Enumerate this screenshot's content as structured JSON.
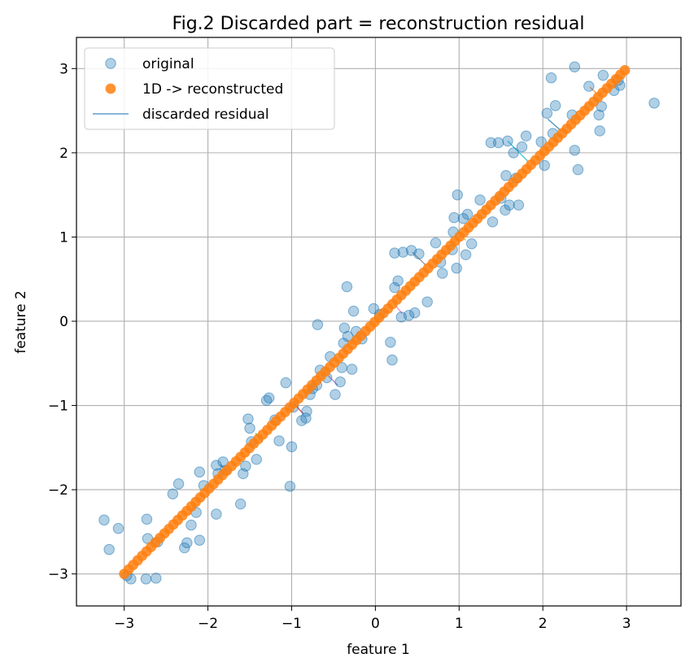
{
  "chart_data": {
    "type": "scatter",
    "title": "Fig.2 Discarded part = reconstruction residual",
    "xlabel": "feature 1",
    "ylabel": "feature 2",
    "xlim": [
      -3.57,
      3.65
    ],
    "ylim": [
      -3.38,
      3.37
    ],
    "xticks": [
      -3,
      -2,
      -1,
      0,
      1,
      2,
      3
    ],
    "yticks": [
      -3,
      -2,
      -1,
      0,
      1,
      2,
      3
    ],
    "xtick_labels": [
      "−3",
      "−2",
      "−1",
      "0",
      "1",
      "2",
      "3"
    ],
    "ytick_labels": [
      "−3",
      "−2",
      "−1",
      "0",
      "1",
      "2",
      "3"
    ],
    "grid": true,
    "legend_position": "top-left",
    "colors": {
      "original": "#1f77b4",
      "reconstructed": "#ff7f0e",
      "residual": "#1f77b4",
      "residual_palette": [
        "#1f77b4",
        "#ff7f0e",
        "#2ca02c",
        "#d62728",
        "#9467bd",
        "#8c564b",
        "#e377c2",
        "#7f7f7f",
        "#bcbd22",
        "#17becf"
      ]
    },
    "legend": [
      {
        "label": "original",
        "kind": "marker-light"
      },
      {
        "label": "1D -> reconstructed",
        "kind": "marker-dark"
      },
      {
        "label": "discarded residual",
        "kind": "line"
      }
    ],
    "series": [
      {
        "name": "original",
        "points": [
          [
            -3.24,
            -2.36
          ],
          [
            -3.18,
            -2.71
          ],
          [
            -3.07,
            -2.46
          ],
          [
            -2.97,
            -3.02
          ],
          [
            -2.92,
            -3.06
          ],
          [
            -2.74,
            -3.06
          ],
          [
            -2.72,
            -2.58
          ],
          [
            -2.62,
            -3.05
          ],
          [
            -2.73,
            -2.35
          ],
          [
            -2.6,
            -2.62
          ],
          [
            -2.42,
            -2.05
          ],
          [
            -2.35,
            -1.93
          ],
          [
            -2.28,
            -2.69
          ],
          [
            -2.25,
            -2.63
          ],
          [
            -2.2,
            -2.42
          ],
          [
            -2.14,
            -2.27
          ],
          [
            -2.1,
            -2.6
          ],
          [
            -2.1,
            -1.79
          ],
          [
            -2.05,
            -1.95
          ],
          [
            -1.9,
            -2.29
          ],
          [
            -1.9,
            -1.71
          ],
          [
            -1.88,
            -1.81
          ],
          [
            -1.82,
            -1.67
          ],
          [
            -1.79,
            -1.77
          ],
          [
            -1.61,
            -2.17
          ],
          [
            -1.58,
            -1.81
          ],
          [
            -1.55,
            -1.72
          ],
          [
            -1.52,
            -1.16
          ],
          [
            -1.5,
            -1.27
          ],
          [
            -1.48,
            -1.43
          ],
          [
            -1.42,
            -1.64
          ],
          [
            -1.3,
            -0.94
          ],
          [
            -1.27,
            -0.91
          ],
          [
            -1.2,
            -1.17
          ],
          [
            -1.15,
            -1.42
          ],
          [
            -1.07,
            -0.73
          ],
          [
            -1.02,
            -1.96
          ],
          [
            -1.0,
            -1.49
          ],
          [
            -0.98,
            -1.02
          ],
          [
            -0.88,
            -1.18
          ],
          [
            -0.83,
            -1.15
          ],
          [
            -0.82,
            -1.07
          ],
          [
            -0.78,
            -0.87
          ],
          [
            -0.75,
            -0.8
          ],
          [
            -0.7,
            -0.76
          ],
          [
            -0.69,
            -0.04
          ],
          [
            -0.66,
            -0.58
          ],
          [
            -0.58,
            -0.67
          ],
          [
            -0.54,
            -0.42
          ],
          [
            -0.48,
            -0.87
          ],
          [
            -0.42,
            -0.72
          ],
          [
            -0.4,
            -0.55
          ],
          [
            -0.38,
            -0.26
          ],
          [
            -0.37,
            -0.08
          ],
          [
            -0.34,
            0.41
          ],
          [
            -0.33,
            -0.18
          ],
          [
            -0.28,
            -0.57
          ],
          [
            -0.26,
            0.12
          ],
          [
            -0.23,
            -0.12
          ],
          [
            -0.16,
            -0.21
          ],
          [
            -0.02,
            0.15
          ],
          [
            0.05,
            0.08
          ],
          [
            0.18,
            -0.25
          ],
          [
            0.2,
            -0.46
          ],
          [
            0.23,
            0.81
          ],
          [
            0.23,
            0.4
          ],
          [
            0.27,
            0.48
          ],
          [
            0.31,
            0.05
          ],
          [
            0.33,
            0.82
          ],
          [
            0.4,
            0.07
          ],
          [
            0.43,
            0.84
          ],
          [
            0.47,
            0.1
          ],
          [
            0.52,
            0.8
          ],
          [
            0.62,
            0.23
          ],
          [
            0.72,
            0.93
          ],
          [
            0.78,
            0.7
          ],
          [
            0.8,
            0.57
          ],
          [
            0.92,
            0.85
          ],
          [
            0.93,
            1.06
          ],
          [
            0.94,
            1.23
          ],
          [
            0.97,
            0.63
          ],
          [
            0.98,
            1.5
          ],
          [
            1.05,
            1.22
          ],
          [
            1.08,
            0.79
          ],
          [
            1.1,
            1.27
          ],
          [
            1.15,
            0.92
          ],
          [
            1.25,
            1.44
          ],
          [
            1.38,
            2.12
          ],
          [
            1.4,
            1.18
          ],
          [
            1.47,
            2.12
          ],
          [
            1.5,
            1.46
          ],
          [
            1.55,
            1.32
          ],
          [
            1.56,
            1.73
          ],
          [
            1.58,
            2.14
          ],
          [
            1.6,
            1.38
          ],
          [
            1.65,
            2.0
          ],
          [
            1.68,
            1.7
          ],
          [
            1.71,
            1.38
          ],
          [
            1.75,
            2.07
          ],
          [
            1.8,
            2.2
          ],
          [
            1.98,
            2.13
          ],
          [
            2.02,
            1.85
          ],
          [
            2.05,
            2.47
          ],
          [
            2.1,
            2.89
          ],
          [
            2.12,
            2.23
          ],
          [
            2.15,
            2.56
          ],
          [
            2.35,
            2.45
          ],
          [
            2.38,
            2.03
          ],
          [
            2.38,
            3.02
          ],
          [
            2.42,
            1.8
          ],
          [
            2.55,
            2.79
          ],
          [
            2.67,
            2.45
          ],
          [
            2.68,
            2.26
          ],
          [
            2.7,
            2.55
          ],
          [
            2.72,
            2.92
          ],
          [
            2.85,
            2.74
          ],
          [
            2.9,
            2.86
          ],
          [
            2.92,
            2.8
          ],
          [
            3.33,
            2.59
          ]
        ]
      },
      {
        "name": "1D -> reconstructed",
        "range": [
          -3.0,
          2.98
        ],
        "count": 113
      }
    ],
    "residuals": [
      {
        "from": [
          -1.85,
          -1.7
        ],
        "to": [
          -1.76,
          -1.79
        ]
      },
      {
        "from": [
          -2.15,
          -2.16
        ],
        "to": [
          -2.22,
          -2.29
        ]
      },
      {
        "from": [
          -1.43,
          -1.33
        ],
        "to": [
          -1.35,
          -1.43
        ]
      },
      {
        "from": [
          -0.97,
          -0.98
        ],
        "to": [
          -0.86,
          -1.1
        ]
      },
      {
        "from": [
          -0.56,
          -0.65
        ],
        "to": [
          -0.45,
          -0.76
        ]
      },
      {
        "from": [
          -0.2,
          -0.12
        ],
        "to": [
          -0.3,
          -0.27
        ]
      },
      {
        "from": [
          0.32,
          0.09
        ],
        "to": [
          0.23,
          0.2
        ]
      },
      {
        "from": [
          0.44,
          0.82
        ],
        "to": [
          0.62,
          0.65
        ]
      },
      {
        "from": [
          0.98,
          1.08
        ],
        "to": [
          1.08,
          0.96
        ]
      },
      {
        "from": [
          1.58,
          2.14
        ],
        "to": [
          1.82,
          1.9
        ]
      },
      {
        "from": [
          2.06,
          2.4
        ],
        "to": [
          2.22,
          2.26
        ]
      },
      {
        "from": [
          2.56,
          2.78
        ],
        "to": [
          2.65,
          2.7
        ]
      }
    ]
  }
}
